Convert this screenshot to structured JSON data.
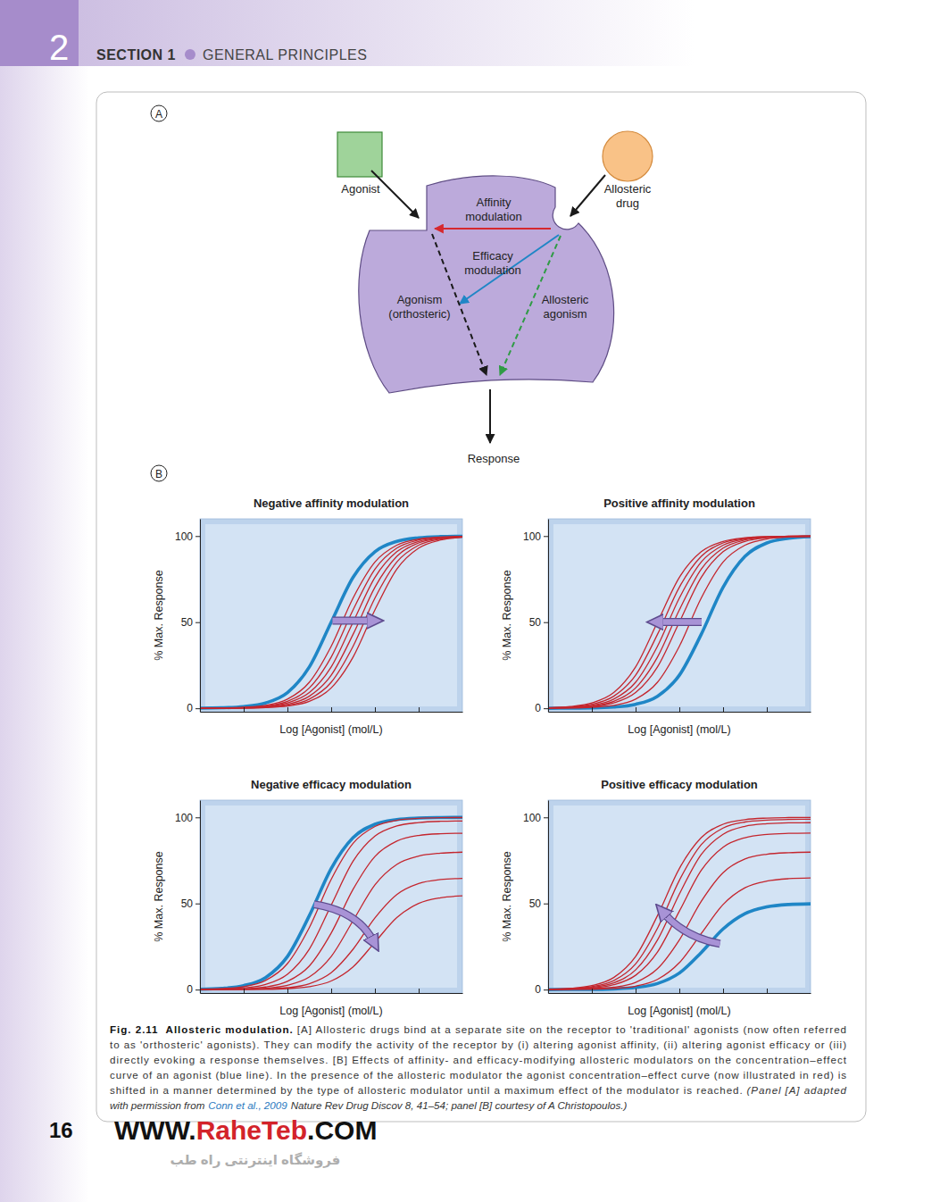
{
  "header": {
    "chapter": "2",
    "section": "SECTION 1",
    "section_title": "GENERAL PRINCIPLES"
  },
  "diagram": {
    "label": "A",
    "agonist": "Agonist",
    "allosteric_drug": [
      "Allosteric",
      "drug"
    ],
    "affinity_modulation": [
      "Affinity",
      "modulation"
    ],
    "efficacy_modulation": [
      "Efficacy",
      "modulation"
    ],
    "agonism": [
      "Agonism",
      "(orthosteric)"
    ],
    "allosteric_agonism": [
      "Allosteric",
      "agonism"
    ],
    "response": "Response"
  },
  "panel_b": {
    "label": "B"
  },
  "chart_data": [
    {
      "type": "line",
      "title": "Negative affinity modulation",
      "xlabel": "Log [Agonist] (mol/L)",
      "ylabel": "% Max. Response",
      "x": [
        0,
        0.5,
        1,
        1.5,
        2,
        2.5,
        3,
        3.5,
        4,
        4.5,
        5,
        5.5,
        6
      ],
      "xlim": [
        0,
        6
      ],
      "xticks": [
        1,
        2,
        3,
        4,
        5
      ],
      "ylim": [
        -2,
        110
      ],
      "yticks": [
        0,
        50,
        100
      ],
      "tick_labels": "y",
      "series": [
        {
          "color": "#1f86c6",
          "values": [
            0.1,
            0.3,
            1.0,
            3.1,
            9.1,
            24.0,
            50,
            76.0,
            90.9,
            96.9,
            99.0,
            99.7,
            99.9
          ]
        },
        {
          "color": "#c4262e",
          "values": [
            0.1,
            0.2,
            0.6,
            1.7,
            5.3,
            15.1,
            36.0,
            64.0,
            84.9,
            94.7,
            98.3,
            99.4,
            99.8
          ]
        },
        {
          "color": "#c4262e",
          "values": [
            0.0,
            0.1,
            0.4,
            1.3,
            4.0,
            11.8,
            29.7,
            57.1,
            80.8,
            93.0,
            97.7,
            99.3,
            99.8
          ]
        },
        {
          "color": "#c4262e",
          "values": [
            0.0,
            0.1,
            0.3,
            1.0,
            3.1,
            9.1,
            24.0,
            50,
            76.0,
            90.9,
            96.9,
            99.0,
            99.7
          ]
        },
        {
          "color": "#c4262e",
          "values": [
            0.0,
            0.1,
            0.2,
            0.7,
            2.3,
            7.0,
            19.2,
            42.9,
            70.3,
            88.2,
            96.0,
            98.7,
            99.6
          ]
        },
        {
          "color": "#c4262e",
          "values": [
            0.0,
            0.1,
            0.2,
            0.6,
            1.7,
            5.3,
            15.1,
            36.0,
            64.0,
            84.9,
            94.7,
            98.3,
            99.4
          ]
        },
        {
          "color": "#c4262e",
          "values": [
            0.0,
            0.0,
            0.1,
            0.4,
            1.3,
            4.0,
            11.8,
            29.7,
            57.1,
            80.8,
            93.0,
            97.7,
            99.3
          ]
        }
      ]
    },
    {
      "type": "line",
      "title": "Positive affinity modulation",
      "xlabel": "Log [Agonist] (mol/L)",
      "ylabel": "% Max. Response",
      "x": [
        0,
        0.5,
        1,
        1.5,
        2,
        2.5,
        3,
        3.5,
        4,
        4.5,
        5,
        5.5,
        6
      ],
      "xlim": [
        0,
        6
      ],
      "xticks": [
        1,
        2,
        3,
        4,
        5
      ],
      "ylim": [
        -2,
        110
      ],
      "yticks": [
        0,
        50,
        100
      ],
      "tick_labels": "y",
      "series": [
        {
          "color": "#1f86c6",
          "values": [
            0.0,
            0.1,
            0.2,
            0.7,
            2.3,
            7.0,
            19.2,
            42.9,
            70.3,
            88.2,
            96.0,
            98.7,
            99.6
          ]
        },
        {
          "color": "#c4262e",
          "values": [
            0.3,
            1.0,
            3.1,
            9.1,
            24.0,
            50,
            76.0,
            90.9,
            96.9,
            99.0,
            99.7,
            99.9,
            100.0
          ]
        },
        {
          "color": "#c4262e",
          "values": [
            0.2,
            0.7,
            2.3,
            7.0,
            19.2,
            42.9,
            70.3,
            88.2,
            96.0,
            98.7,
            99.6,
            99.9,
            100.0
          ]
        },
        {
          "color": "#c4262e",
          "values": [
            0.2,
            0.6,
            1.7,
            5.3,
            15.1,
            36.0,
            64.0,
            84.9,
            94.7,
            98.3,
            99.4,
            99.8,
            99.9
          ]
        },
        {
          "color": "#c4262e",
          "values": [
            0.1,
            0.4,
            1.3,
            4.0,
            11.8,
            29.7,
            57.1,
            80.8,
            93.0,
            97.7,
            99.3,
            99.8,
            99.9
          ]
        },
        {
          "color": "#c4262e",
          "values": [
            0.1,
            0.3,
            1.0,
            3.1,
            9.1,
            24.0,
            50,
            76.0,
            90.9,
            96.9,
            99.0,
            99.7,
            99.9
          ]
        },
        {
          "color": "#c4262e",
          "values": [
            0.1,
            0.2,
            0.6,
            1.7,
            5.3,
            15.1,
            36.0,
            64.0,
            84.9,
            94.7,
            98.3,
            99.4,
            99.8
          ]
        }
      ]
    },
    {
      "type": "line",
      "title": "Negative efficacy modulation",
      "xlabel": "Log [Agonist] (mol/L)",
      "ylabel": "% Max. Response",
      "x": [
        0,
        0.5,
        1,
        1.5,
        2,
        2.5,
        3,
        3.5,
        4,
        4.5,
        5,
        5.5,
        6
      ],
      "xlim": [
        0,
        6
      ],
      "xticks": [
        1,
        2,
        3,
        4,
        5
      ],
      "ylim": [
        -2,
        110
      ],
      "yticks": [
        0,
        50,
        100
      ],
      "tick_labels": "y",
      "series": [
        {
          "color": "#1f86c6",
          "values": [
            0.2,
            0.7,
            2.3,
            7.0,
            19.2,
            42.9,
            70.3,
            88.2,
            96.0,
            98.7,
            99.6,
            99.9,
            100.0
          ]
        },
        {
          "color": "#c4262e",
          "values": [
            0.2,
            0.6,
            1.7,
            5.3,
            15.1,
            36.0,
            64.0,
            84.9,
            94.7,
            98.3,
            99.4,
            99.8,
            99.9
          ]
        },
        {
          "color": "#c4262e",
          "values": [
            0.1,
            0.3,
            1.0,
            3.0,
            8.9,
            23.5,
            49.0,
            74.5,
            89.1,
            95.0,
            97.0,
            97.7,
            97.9
          ]
        },
        {
          "color": "#c4262e",
          "values": [
            0.1,
            0.2,
            0.5,
            1.5,
            4.8,
            13.7,
            32.8,
            58.2,
            77.3,
            86.2,
            89.5,
            90.5,
            90.8
          ]
        },
        {
          "color": "#c4262e",
          "values": [
            0.0,
            0.1,
            0.2,
            0.8,
            2.5,
            7.3,
            19.2,
            40.0,
            60.8,
            72.7,
            77.5,
            79.2,
            79.8
          ]
        },
        {
          "color": "#c4262e",
          "values": [
            0.0,
            0.1,
            0.1,
            0.4,
            1.1,
            3.4,
            9.8,
            23.4,
            41.6,
            55.2,
            61.6,
            63.9,
            64.6
          ]
        },
        {
          "color": "#c4262e",
          "values": [
            0.0,
            0.0,
            0.1,
            0.2,
            0.6,
            1.7,
            5.0,
            13.2,
            27.5,
            41.8,
            50.0,
            53.3,
            54.5
          ]
        }
      ]
    },
    {
      "type": "line",
      "title": "Positive efficacy modulation",
      "xlabel": "Log [Agonist] (mol/L)",
      "ylabel": "% Max. Response",
      "x": [
        0,
        0.5,
        1,
        1.5,
        2,
        2.5,
        3,
        3.5,
        4,
        4.5,
        5,
        5.5,
        6
      ],
      "xlim": [
        0,
        6
      ],
      "xticks": [
        1,
        2,
        3,
        4,
        5
      ],
      "ylim": [
        -2,
        110
      ],
      "yticks": [
        0,
        50,
        100
      ],
      "tick_labels": "y",
      "series": [
        {
          "color": "#1f86c6",
          "values": [
            0.0,
            0.1,
            0.1,
            0.4,
            1.2,
            3.5,
            9.6,
            21.5,
            35.2,
            44.1,
            48.0,
            49.4,
            49.8
          ]
        },
        {
          "color": "#c4262e",
          "values": [
            0.2,
            0.7,
            2.3,
            7.0,
            19.2,
            42.9,
            70.3,
            88.2,
            96.0,
            98.7,
            99.6,
            99.9,
            100.0
          ]
        },
        {
          "color": "#c4262e",
          "values": [
            0.2,
            0.6,
            1.7,
            5.2,
            14.9,
            35.6,
            63.4,
            84.1,
            93.8,
            97.3,
            98.4,
            98.8,
            98.9
          ]
        },
        {
          "color": "#c4262e",
          "values": [
            0.1,
            0.4,
            1.3,
            3.9,
            11.4,
            28.8,
            55.4,
            78.4,
            90.2,
            94.8,
            96.3,
            96.8,
            96.9
          ]
        },
        {
          "color": "#c4262e",
          "values": [
            0.1,
            0.3,
            0.9,
            2.8,
            8.3,
            21.8,
            45.5,
            69.2,
            82.7,
            88.2,
            90.1,
            90.7,
            90.9
          ]
        },
        {
          "color": "#c4262e",
          "values": [
            0.1,
            0.2,
            0.5,
            1.4,
            4.2,
            12.1,
            28.8,
            51.2,
            67.9,
            75.8,
            78.6,
            79.5,
            79.8
          ]
        },
        {
          "color": "#c4262e",
          "values": [
            0.0,
            0.1,
            0.2,
            0.7,
            2.0,
            5.9,
            15.6,
            32.5,
            49.4,
            59.1,
            63.0,
            64.4,
            64.8
          ]
        }
      ]
    }
  ],
  "caption": {
    "lines": [
      [
        "Fig. 2.11",
        "Allosteric modulation.",
        "[A] Allosteric drugs bind at a separate site on the receptor to 'traditional' agonists (now often referred"
      ],
      [
        "to as 'orthosteric' agonists). They can modify the activity of the receptor by (i) altering agonist affinity, (ii) altering agonist efficacy or (iii)"
      ],
      [
        "directly evoking a response themselves. [B] Effects of affinity- and efficacy-modifying allosteric modulators on the concentration–effect"
      ],
      [
        "curve of an agonist (blue line). In the presence of the allosteric modulator the agonist concentration–effect curve (now illustrated in red) is"
      ],
      [
        "shifted in a manner determined by the type of allosteric modulator until a maximum effect of the modulator is reached.",
        "(Panel [A] adapted"
      ],
      [
        "with permission from",
        "Conn et al., 2009",
        "Nature Rev Drug Discov 8, 41–54; panel [B] courtesy of A Christopoulos.)"
      ]
    ]
  },
  "footer": {
    "page": "16",
    "site": [
      "WWW.",
      "RaheTeb",
      ".COM"
    ],
    "watermark": "فروشگاه اینترنتی راه طب"
  }
}
